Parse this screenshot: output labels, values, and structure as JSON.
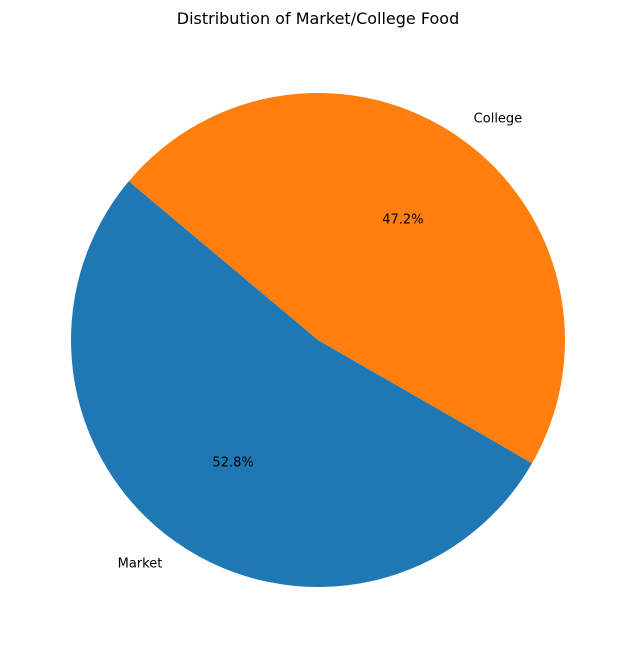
{
  "chart_data": {
    "type": "pie",
    "title": "Distribution of Market/College Food",
    "categories": [
      "Market",
      "College"
    ],
    "values": [
      52.8,
      47.2
    ],
    "percent_labels": [
      "52.8%",
      "47.2%"
    ],
    "colors": [
      "#1f77b4",
      "#ff7f0e"
    ],
    "start_angle_deg": 140,
    "direction": "counterclockwise"
  }
}
